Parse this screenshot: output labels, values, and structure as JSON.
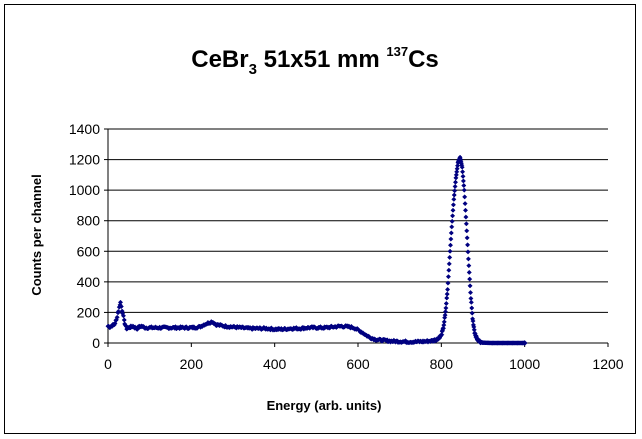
{
  "chart_data": {
    "type": "scatter",
    "title": {
      "main": "CeBr",
      "sub": "3",
      "mid": " 51x51 mm ",
      "sup": "137",
      "tail": "Cs"
    },
    "xlabel": "Energy (arb. units)",
    "ylabel": "Counts per channel",
    "xlim": [
      0,
      1200
    ],
    "ylim": [
      0,
      1400
    ],
    "xticks": [
      0,
      200,
      400,
      600,
      800,
      1000,
      1200
    ],
    "yticks": [
      0,
      200,
      400,
      600,
      800,
      1000,
      1200,
      1400
    ],
    "grid": "horizontal major gridlines",
    "legend": "none",
    "marker": "diamond",
    "marker_color": "#000080",
    "plot_area_color": "#ffffff",
    "frame_color": "#ffffff",
    "series": [
      {
        "x": [
          0,
          5,
          10,
          15,
          20,
          25,
          30,
          35,
          40,
          45,
          50,
          55,
          60,
          65,
          70,
          75,
          80,
          90,
          100,
          120,
          140,
          160,
          180,
          200,
          220,
          230,
          240,
          250,
          260,
          280,
          300,
          320,
          340,
          360,
          380,
          400,
          420,
          440,
          460,
          480,
          500,
          520,
          540,
          560,
          580,
          590,
          600,
          610,
          620,
          630,
          640,
          650,
          660,
          670,
          680,
          700,
          720,
          740,
          760,
          780,
          790,
          800,
          805,
          810,
          815,
          820,
          825,
          830,
          835,
          840,
          845,
          850,
          855,
          860,
          865,
          870,
          875,
          880,
          885,
          890,
          895,
          900,
          910,
          920,
          940,
          960,
          980,
          1000
        ],
        "y": [
          110,
          105,
          115,
          120,
          150,
          210,
          265,
          200,
          130,
          95,
          100,
          105,
          110,
          100,
          95,
          105,
          110,
          100,
          100,
          100,
          100,
          100,
          100,
          100,
          105,
          120,
          130,
          140,
          120,
          110,
          105,
          100,
          95,
          95,
          95,
          90,
          90,
          95,
          95,
          100,
          100,
          100,
          105,
          110,
          105,
          100,
          85,
          70,
          50,
          35,
          25,
          20,
          18,
          15,
          12,
          10,
          8,
          8,
          10,
          15,
          25,
          50,
          100,
          200,
          350,
          560,
          760,
          940,
          1080,
          1180,
          1215,
          1150,
          1000,
          780,
          550,
          330,
          160,
          70,
          30,
          12,
          5,
          2,
          1,
          0,
          0,
          0,
          0,
          0
        ]
      }
    ]
  }
}
